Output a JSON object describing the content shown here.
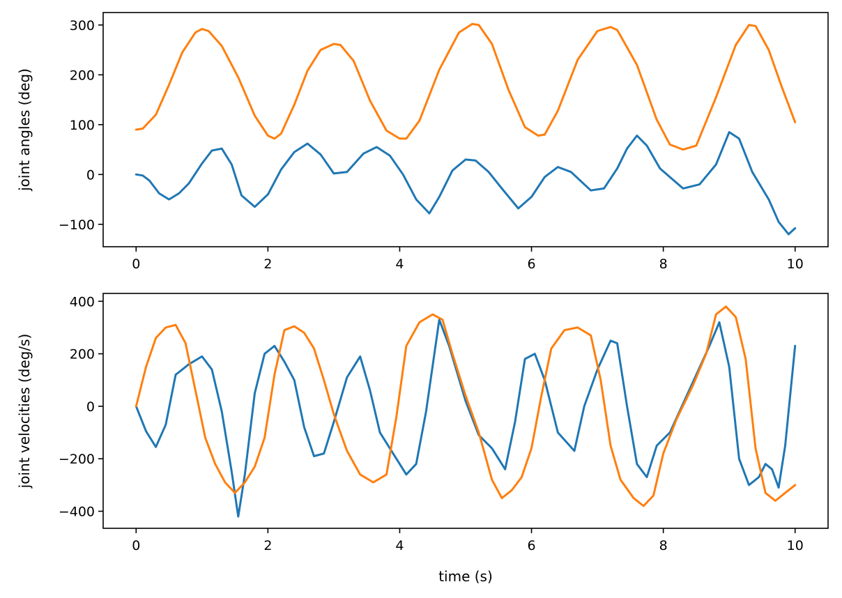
{
  "chart_data": [
    {
      "type": "line",
      "title": "",
      "xlabel": "",
      "ylabel": "joint angles (deg)",
      "xlim": [
        -0.5,
        10.5
      ],
      "ylim": [
        -145,
        325
      ],
      "xticks": [
        0,
        2,
        4,
        6,
        8,
        10
      ],
      "xtick_labels": [
        "0",
        "2",
        "4",
        "6",
        "8",
        "10"
      ],
      "yticks": [
        -100,
        0,
        100,
        200,
        300
      ],
      "ytick_labels": [
        "−100",
        "0",
        "100",
        "200",
        "300"
      ],
      "grid": false,
      "series": [
        {
          "color": "#1f77b4",
          "x": [
            0,
            0.1,
            0.2,
            0.35,
            0.5,
            0.65,
            0.8,
            1.0,
            1.15,
            1.3,
            1.45,
            1.6,
            1.8,
            2.0,
            2.2,
            2.4,
            2.6,
            2.8,
            3.0,
            3.2,
            3.45,
            3.65,
            3.85,
            4.05,
            4.25,
            4.45,
            4.6,
            4.8,
            5.0,
            5.15,
            5.35,
            5.55,
            5.8,
            6.0,
            6.2,
            6.4,
            6.6,
            6.9,
            7.1,
            7.3,
            7.45,
            7.6,
            7.75,
            7.95,
            8.3,
            8.55,
            8.8,
            9.0,
            9.15,
            9.35,
            9.6,
            9.75,
            9.9,
            10.0
          ],
          "y": [
            0,
            -2,
            -12,
            -38,
            -50,
            -38,
            -18,
            22,
            48,
            52,
            20,
            -42,
            -65,
            -40,
            10,
            45,
            62,
            40,
            2,
            5,
            42,
            55,
            38,
            0,
            -50,
            -78,
            -45,
            8,
            30,
            28,
            5,
            -28,
            -68,
            -45,
            -5,
            15,
            5,
            -32,
            -28,
            12,
            52,
            78,
            58,
            12,
            -28,
            -20,
            20,
            85,
            72,
            5,
            -50,
            -95,
            -120,
            -108
          ]
        },
        {
          "color": "#ff7f0e",
          "x": [
            0,
            0.1,
            0.3,
            0.5,
            0.7,
            0.9,
            1.0,
            1.1,
            1.3,
            1.55,
            1.8,
            2.0,
            2.1,
            2.2,
            2.4,
            2.6,
            2.8,
            3.0,
            3.1,
            3.3,
            3.55,
            3.8,
            4.0,
            4.1,
            4.3,
            4.6,
            4.9,
            5.1,
            5.2,
            5.4,
            5.65,
            5.9,
            6.1,
            6.2,
            6.4,
            6.7,
            7.0,
            7.2,
            7.3,
            7.6,
            7.9,
            8.1,
            8.3,
            8.5,
            8.8,
            9.1,
            9.3,
            9.4,
            9.6,
            9.8,
            10.0
          ],
          "y": [
            90,
            92,
            120,
            180,
            245,
            285,
            292,
            288,
            258,
            195,
            118,
            78,
            72,
            82,
            140,
            208,
            250,
            262,
            260,
            228,
            148,
            88,
            72,
            72,
            108,
            210,
            285,
            302,
            300,
            262,
            170,
            95,
            78,
            80,
            128,
            230,
            288,
            296,
            290,
            220,
            110,
            60,
            50,
            58,
            155,
            260,
            300,
            298,
            250,
            175,
            105
          ]
        }
      ]
    },
    {
      "type": "line",
      "title": "",
      "xlabel": "time (s)",
      "ylabel": "joint velocities (deg/s)",
      "xlim": [
        -0.5,
        10.5
      ],
      "ylim": [
        -465,
        430
      ],
      "xticks": [
        0,
        2,
        4,
        6,
        8,
        10
      ],
      "xtick_labels": [
        "0",
        "2",
        "4",
        "6",
        "8",
        "10"
      ],
      "yticks": [
        -400,
        -200,
        0,
        200,
        400
      ],
      "ytick_labels": [
        "−400",
        "−200",
        "0",
        "200",
        "400"
      ],
      "grid": false,
      "series": [
        {
          "color": "#1f77b4",
          "x": [
            0,
            0.15,
            0.3,
            0.45,
            0.6,
            0.8,
            1.0,
            1.15,
            1.3,
            1.45,
            1.55,
            1.65,
            1.8,
            1.95,
            2.1,
            2.25,
            2.4,
            2.55,
            2.7,
            2.85,
            3.0,
            3.2,
            3.4,
            3.55,
            3.7,
            3.9,
            4.1,
            4.25,
            4.4,
            4.6,
            4.75,
            5.0,
            5.2,
            5.4,
            5.6,
            5.75,
            5.9,
            6.05,
            6.2,
            6.4,
            6.65,
            6.8,
            7.0,
            7.2,
            7.3,
            7.45,
            7.6,
            7.75,
            7.9,
            8.1,
            8.3,
            8.5,
            8.7,
            8.85,
            9.0,
            9.15,
            9.3,
            9.45,
            9.55,
            9.65,
            9.75,
            9.85,
            10.0
          ],
          "y": [
            0,
            -95,
            -155,
            -70,
            120,
            160,
            190,
            140,
            -20,
            -250,
            -420,
            -260,
            50,
            200,
            230,
            170,
            100,
            -80,
            -190,
            -180,
            -60,
            110,
            190,
            60,
            -100,
            -180,
            -260,
            -220,
            -20,
            330,
            230,
            20,
            -110,
            -160,
            -240,
            -60,
            180,
            200,
            100,
            -100,
            -170,
            0,
            140,
            250,
            240,
            0,
            -220,
            -270,
            -150,
            -100,
            10,
            120,
            230,
            320,
            150,
            -200,
            -300,
            -270,
            -220,
            -240,
            -310,
            -150,
            230
          ]
        },
        {
          "color": "#ff7f0e",
          "x": [
            0,
            0.15,
            0.3,
            0.45,
            0.6,
            0.75,
            0.9,
            1.05,
            1.2,
            1.35,
            1.5,
            1.65,
            1.8,
            1.95,
            2.1,
            2.25,
            2.4,
            2.55,
            2.7,
            2.85,
            3.0,
            3.2,
            3.4,
            3.6,
            3.8,
            3.95,
            4.1,
            4.3,
            4.5,
            4.65,
            4.8,
            5.0,
            5.2,
            5.4,
            5.55,
            5.7,
            5.85,
            6.0,
            6.15,
            6.3,
            6.5,
            6.7,
            6.9,
            7.05,
            7.2,
            7.35,
            7.55,
            7.7,
            7.85,
            8.0,
            8.2,
            8.45,
            8.65,
            8.8,
            8.95,
            9.1,
            9.25,
            9.4,
            9.55,
            9.7,
            9.85,
            10.0
          ],
          "y": [
            0,
            150,
            260,
            300,
            310,
            240,
            60,
            -120,
            -220,
            -290,
            -330,
            -290,
            -230,
            -120,
            120,
            290,
            305,
            280,
            220,
            100,
            -30,
            -170,
            -260,
            -290,
            -260,
            -40,
            230,
            320,
            350,
            330,
            200,
            40,
            -100,
            -280,
            -350,
            -320,
            -270,
            -160,
            40,
            220,
            290,
            300,
            270,
            100,
            -150,
            -280,
            -350,
            -380,
            -340,
            -180,
            -50,
            80,
            200,
            350,
            380,
            340,
            180,
            -160,
            -330,
            -360,
            -330,
            -300
          ]
        }
      ]
    }
  ]
}
